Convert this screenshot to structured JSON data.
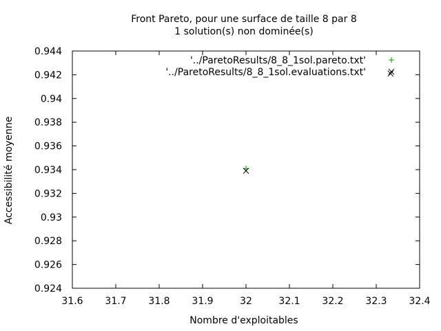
{
  "chart_data": {
    "type": "scatter",
    "title": "Front Pareto, pour une surface de taille 8 par 8",
    "subtitle": "1 solution(s) non dominée(s)",
    "xlabel": "Nombre d'exploitables",
    "ylabel": "Accessibilité moyenne",
    "xlim": [
      31.6,
      32.4
    ],
    "ylim": [
      0.924,
      0.944
    ],
    "xticks": [
      31.6,
      31.7,
      31.8,
      31.9,
      32,
      32.1,
      32.2,
      32.3,
      32.4
    ],
    "xtick_labels": [
      "31.6",
      "31.7",
      "31.8",
      "31.9",
      "32",
      "32.1",
      "32.2",
      "32.3",
      "32.4"
    ],
    "yticks": [
      0.924,
      0.926,
      0.928,
      0.93,
      0.932,
      0.934,
      0.936,
      0.938,
      0.94,
      0.942,
      0.944
    ],
    "ytick_labels": [
      "0.924",
      "0.926",
      "0.928",
      "0.93",
      "0.932",
      "0.934",
      "0.936",
      "0.938",
      "0.94",
      "0.942",
      "0.944"
    ],
    "grid": false,
    "legend_position": "top-right",
    "series": [
      {
        "name": "'../ParetoResults/8_8_1sol.pareto.txt'",
        "marker": "plus",
        "color": "#00a000",
        "points": [
          {
            "x": 32.0,
            "y": 0.9341
          }
        ]
      },
      {
        "name": "'../ParetoResults/8_8_1sol.evaluations.txt'",
        "marker": "cross",
        "color": "#000000",
        "points": [
          {
            "x": 32.0,
            "y": 0.9339
          },
          {
            "x": 32.333,
            "y": 0.9421
          }
        ]
      }
    ]
  }
}
